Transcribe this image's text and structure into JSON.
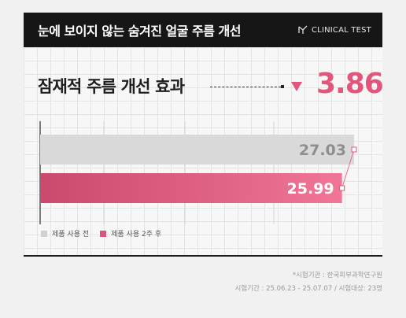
{
  "header": {
    "title": "눈에 보이지 않는 숨겨진 얼굴 주름 개선",
    "badge": "CLINICAL TEST"
  },
  "effect": {
    "label": "잠재적 주름 개선 효과",
    "value": "3.86"
  },
  "chart_data": {
    "type": "bar",
    "orientation": "horizontal",
    "categories": [
      "제품 사용 전",
      "제품 사용 2주 후"
    ],
    "values": [
      27.03,
      25.99
    ],
    "value_labels": [
      "27.03",
      "25.99"
    ],
    "xlim": [
      0,
      27.03
    ],
    "grid": true,
    "colors": [
      "#d9d9d9",
      "#d9577d"
    ],
    "legend_position": "bottom-left"
  },
  "legend": [
    {
      "label": "제품 사용 전",
      "color": "#d0d0d0"
    },
    {
      "label": "제품 사용 2주 후",
      "color": "#d9577d"
    }
  ],
  "footnotes": {
    "institute": "*시험기관 : 한국피부과학연구원",
    "period": "시험기간 : 25.06.23 - 25.07.07 / 시험대상: 23명"
  }
}
